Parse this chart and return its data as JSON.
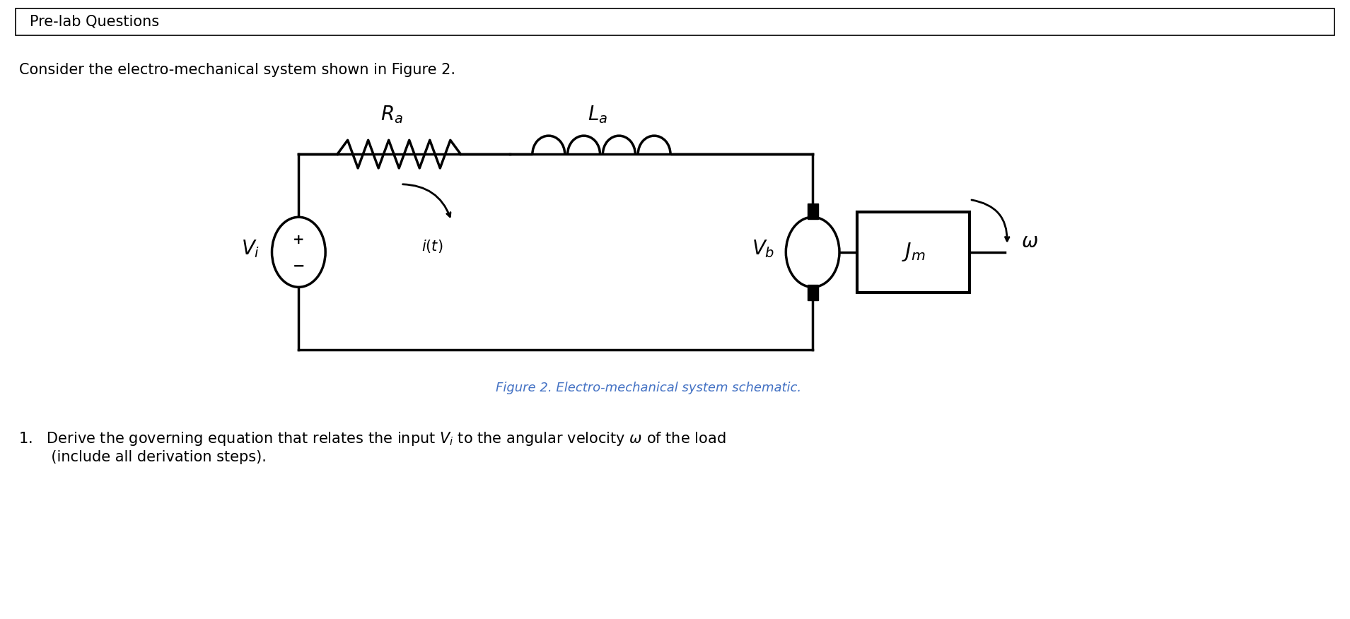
{
  "bg_color": "#ffffff",
  "title_box_text": "Pre-lab Questions",
  "subtitle_text": "Consider the electro-mechanical system shown in Figure 2.",
  "figure_caption": "Figure 2. Electro-mechanical system schematic.",
  "text_color": "#000000",
  "caption_color": "#4472C4",
  "title_fontsize": 15,
  "body_fontsize": 15,
  "caption_fontsize": 13,
  "circuit_label_fontsize": 20,
  "component_label_fontsize": 18
}
